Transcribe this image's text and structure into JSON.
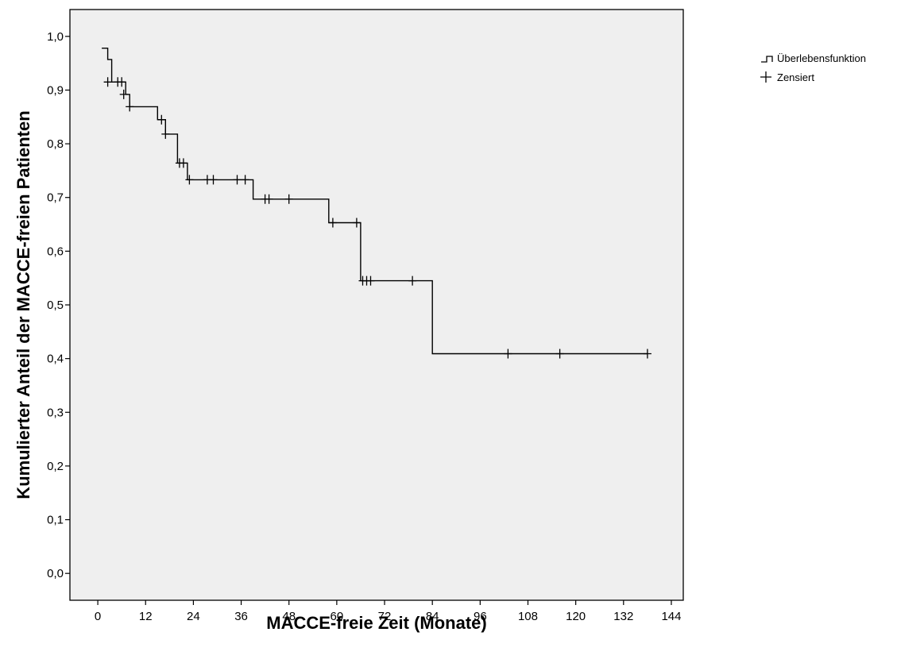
{
  "chart_data": {
    "type": "line",
    "subtype": "kaplan-meier-step",
    "xlabel": "MACCE-freie Zeit (Monate)",
    "ylabel": "Kumulierter Anteil der MACCE-freien Patienten",
    "xlim": [
      -7,
      147
    ],
    "ylim": [
      -0.05,
      1.05
    ],
    "x_ticks": [
      0,
      12,
      24,
      36,
      48,
      60,
      72,
      84,
      96,
      108,
      120,
      132,
      144
    ],
    "y_ticks": [
      0.0,
      0.1,
      0.2,
      0.3,
      0.4,
      0.5,
      0.6,
      0.7,
      0.8,
      0.9,
      1.0
    ],
    "x_tick_labels": [
      "0",
      "12",
      "24",
      "36",
      "48",
      "60",
      "72",
      "84",
      "96",
      "108",
      "120",
      "132",
      "144"
    ],
    "y_tick_labels": [
      "0,0",
      "0,1",
      "0,2",
      "0,3",
      "0,4",
      "0,5",
      "0,6",
      "0,7",
      "0,8",
      "0,9",
      "1,0"
    ],
    "grid": false,
    "plot_background": "#efefef",
    "line_color": "#000000",
    "legend_position": "top-right-outside",
    "legend": [
      {
        "symbol": "step-icon",
        "label": "Überlebensfunktion"
      },
      {
        "symbol": "plus-icon",
        "label": "Zensiert"
      }
    ],
    "series": [
      {
        "name": "Überlebensfunktion",
        "step_points": [
          [
            1,
            0.978
          ],
          [
            2.5,
            0.978
          ],
          [
            2.5,
            0.957
          ],
          [
            3.5,
            0.957
          ],
          [
            3.5,
            0.915
          ],
          [
            7,
            0.915
          ],
          [
            7,
            0.892
          ],
          [
            8,
            0.892
          ],
          [
            8,
            0.869
          ],
          [
            15,
            0.869
          ],
          [
            15,
            0.845
          ],
          [
            17,
            0.845
          ],
          [
            17,
            0.818
          ],
          [
            20,
            0.818
          ],
          [
            20,
            0.764
          ],
          [
            22.5,
            0.764
          ],
          [
            22.5,
            0.733
          ],
          [
            39,
            0.733
          ],
          [
            39,
            0.697
          ],
          [
            58,
            0.697
          ],
          [
            58,
            0.653
          ],
          [
            66,
            0.653
          ],
          [
            66,
            0.545
          ],
          [
            84,
            0.545
          ],
          [
            84,
            0.409
          ],
          [
            138,
            0.409
          ]
        ],
        "censored": [
          {
            "x": 2.5,
            "y": 0.915
          },
          {
            "x": 5,
            "y": 0.915
          },
          {
            "x": 6,
            "y": 0.915
          },
          {
            "x": 6.5,
            "y": 0.892
          },
          {
            "x": 8,
            "y": 0.869
          },
          {
            "x": 16,
            "y": 0.845
          },
          {
            "x": 17,
            "y": 0.818
          },
          {
            "x": 20.5,
            "y": 0.764
          },
          {
            "x": 21.5,
            "y": 0.764
          },
          {
            "x": 23,
            "y": 0.733
          },
          {
            "x": 27.5,
            "y": 0.733
          },
          {
            "x": 29,
            "y": 0.733
          },
          {
            "x": 35,
            "y": 0.733
          },
          {
            "x": 37,
            "y": 0.733
          },
          {
            "x": 42,
            "y": 0.697
          },
          {
            "x": 43,
            "y": 0.697
          },
          {
            "x": 48,
            "y": 0.697
          },
          {
            "x": 59,
            "y": 0.653
          },
          {
            "x": 65,
            "y": 0.653
          },
          {
            "x": 66.5,
            "y": 0.545
          },
          {
            "x": 67.5,
            "y": 0.545
          },
          {
            "x": 68.5,
            "y": 0.545
          },
          {
            "x": 79,
            "y": 0.545
          },
          {
            "x": 103,
            "y": 0.409
          },
          {
            "x": 116,
            "y": 0.409
          },
          {
            "x": 138,
            "y": 0.409
          }
        ]
      }
    ]
  }
}
